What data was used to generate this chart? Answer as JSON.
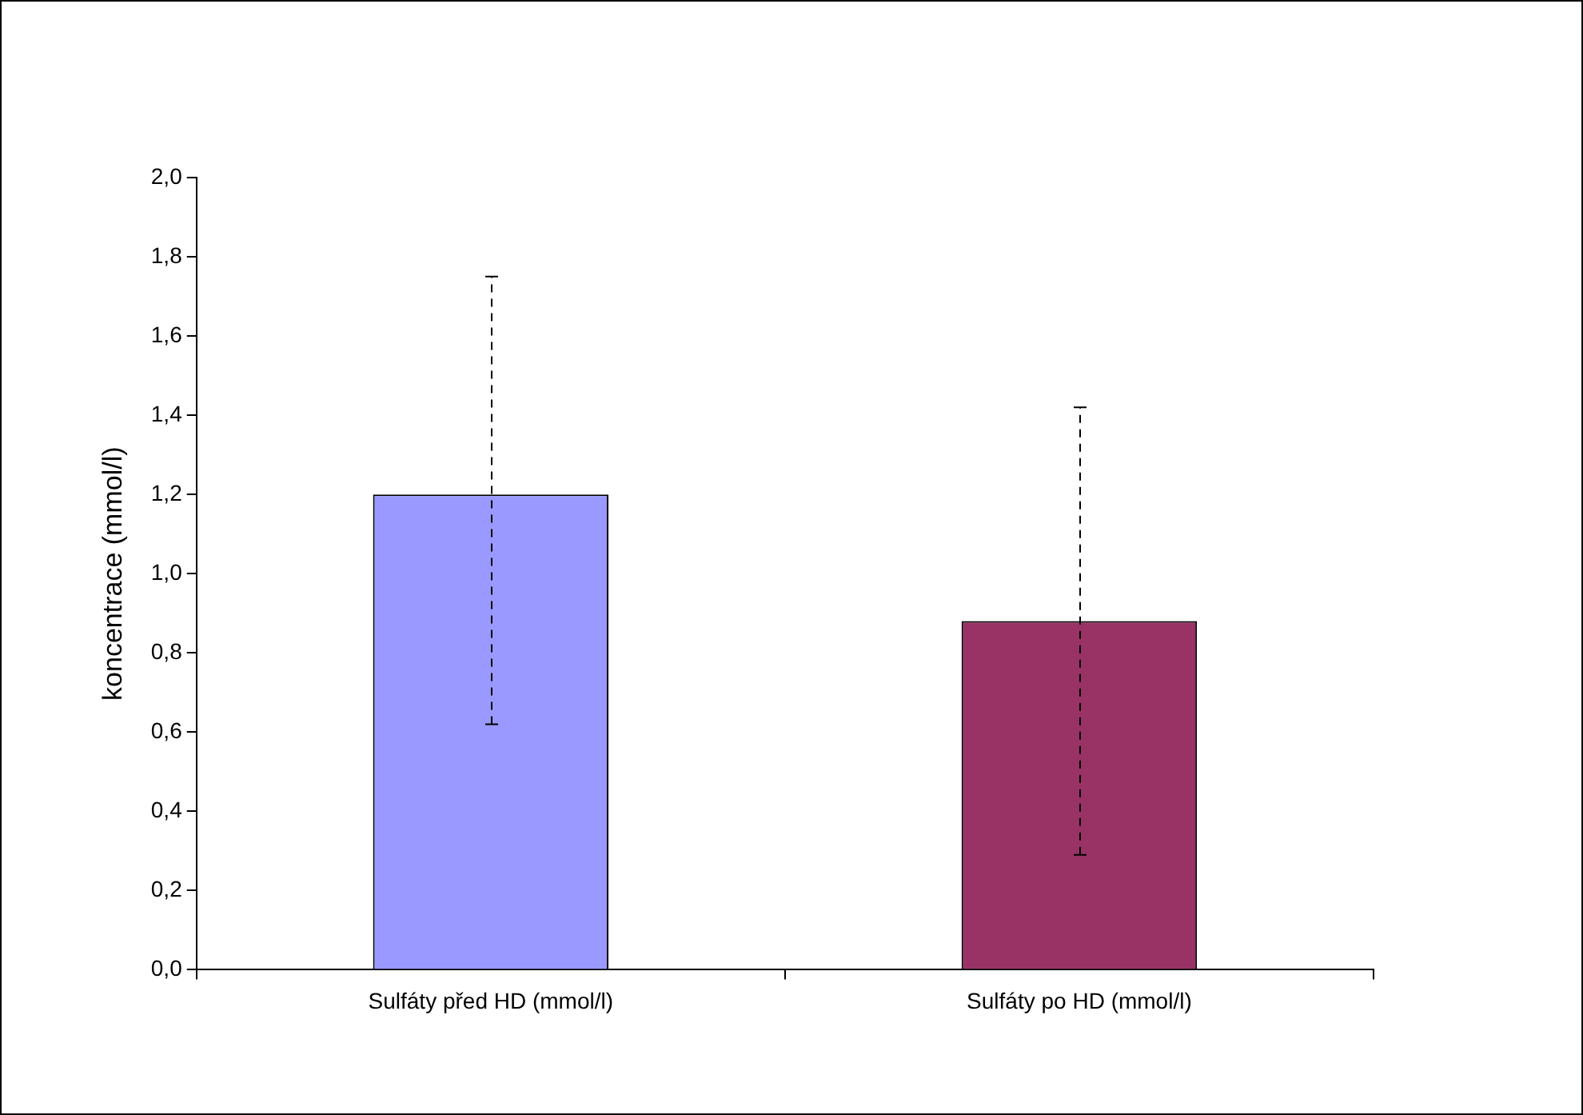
{
  "chart_data": {
    "type": "bar",
    "ylabel": "koncentrace (mmol/l)",
    "categories": [
      "Sulfáty před HD (mmol/l)",
      "Sulfáty po HD (mmol/l)"
    ],
    "values": [
      1.2,
      0.88
    ],
    "colors": [
      "#9999ff",
      "#993366"
    ],
    "errors": [
      [
        0.62,
        1.75
      ],
      [
        0.29,
        1.42
      ]
    ],
    "ylim": [
      0,
      2
    ],
    "yticks": [
      {
        "value": 0,
        "label": "0,0"
      },
      {
        "value": 0.2,
        "label": "0,2"
      },
      {
        "value": 0.4,
        "label": "0,4"
      },
      {
        "value": 0.6,
        "label": "0,6"
      },
      {
        "value": 0.8,
        "label": "0,8"
      },
      {
        "value": 1,
        "label": "1,0"
      },
      {
        "value": 1.2,
        "label": "1,2"
      },
      {
        "value": 1.4,
        "label": "1,4"
      },
      {
        "value": 1.6,
        "label": "1,6"
      },
      {
        "value": 1.8,
        "label": "1,8"
      },
      {
        "value": 2,
        "label": "2,0"
      }
    ],
    "grid": false,
    "legend": false
  }
}
